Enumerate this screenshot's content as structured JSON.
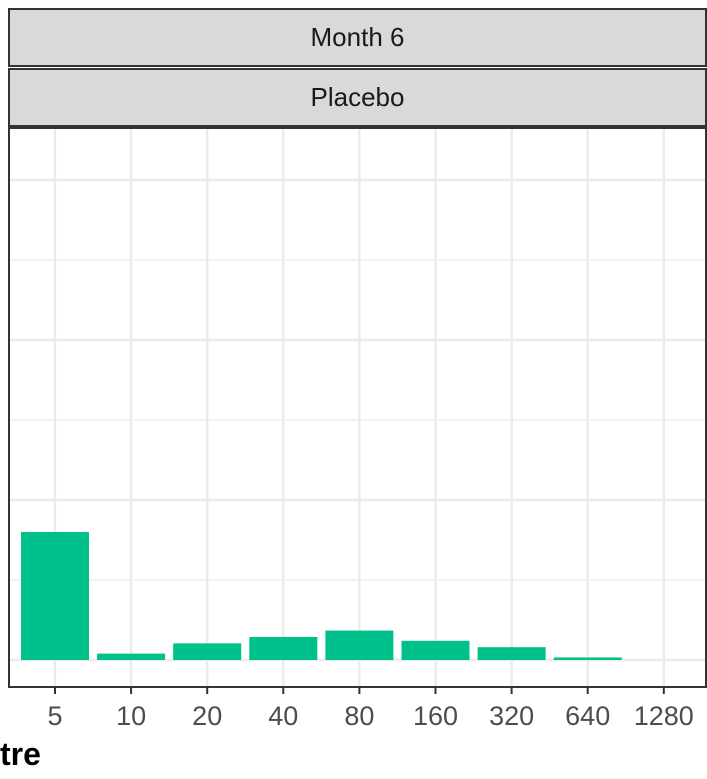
{
  "facets": {
    "top": "Month 6",
    "bottom": "Placebo"
  },
  "axis_title_visible": "tre",
  "chart_data": {
    "type": "bar",
    "categories": [
      "5",
      "10",
      "20",
      "40",
      "80",
      "160",
      "320",
      "640",
      "1280"
    ],
    "values": [
      100,
      5,
      13,
      18,
      23,
      15,
      10,
      2,
      0
    ],
    "ylim": [
      0,
      415
    ],
    "grid": true,
    "bar_color": "#00c08b",
    "grid_color": "#ebebeb",
    "panel_border_color": "#333333"
  }
}
